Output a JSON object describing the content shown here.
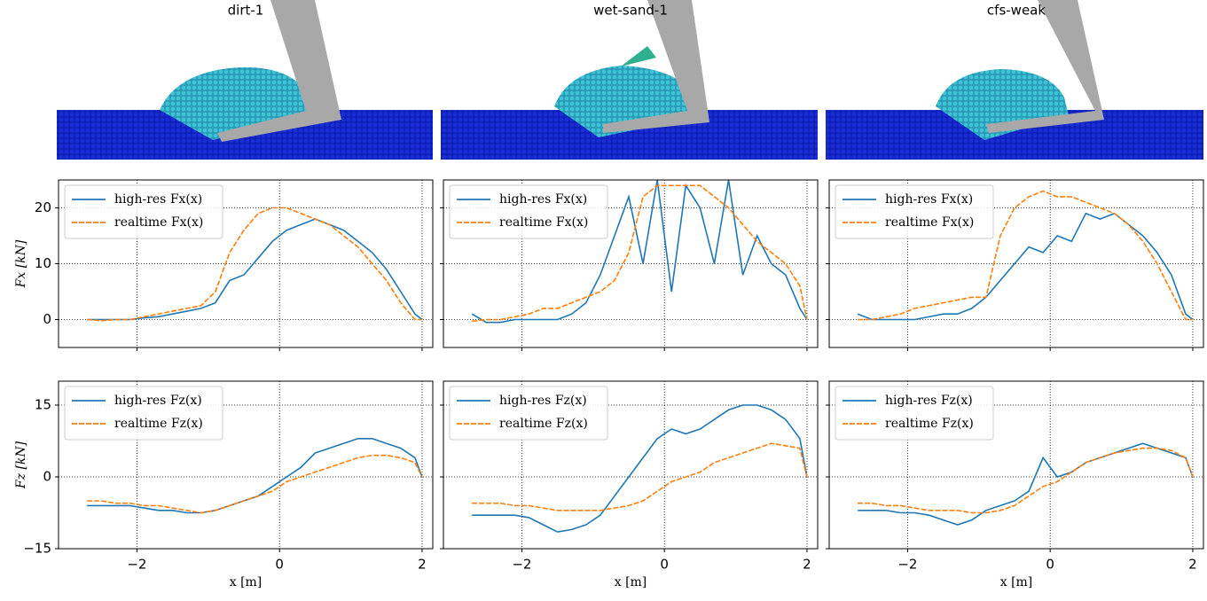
{
  "chart_data": [
    {
      "type": "line",
      "title": "dirt-1",
      "ylabel": "Fx [kN]",
      "xlim": [
        -3.1,
        2.15
      ],
      "ylim": [
        -5,
        25
      ],
      "xticks": [
        -2,
        0,
        2
      ],
      "yticks": [
        0,
        10,
        20
      ],
      "grid": true,
      "legend": "upper left",
      "x": [
        -2.7,
        -2.5,
        -2.3,
        -2.1,
        -1.9,
        -1.7,
        -1.5,
        -1.3,
        -1.1,
        -0.9,
        -0.7,
        -0.5,
        -0.3,
        -0.1,
        0.1,
        0.3,
        0.5,
        0.7,
        0.9,
        1.1,
        1.3,
        1.5,
        1.7,
        1.9,
        2.0
      ],
      "series": [
        {
          "name": "high-res Fx(x)",
          "color": "#1f77b4",
          "linestyle": "solid",
          "values": [
            0,
            0,
            0,
            0,
            0.3,
            0.5,
            1,
            1.5,
            2,
            3,
            7,
            8,
            11,
            14,
            16,
            17,
            18,
            17,
            16,
            14,
            12,
            9,
            5,
            1,
            0
          ]
        },
        {
          "name": "realtime Fx(x)",
          "color": "#ff7f0e",
          "linestyle": "dashed",
          "values": [
            0,
            -0.2,
            0,
            0,
            0.5,
            1,
            1.5,
            2,
            2.5,
            5,
            12,
            16,
            19,
            20,
            20,
            19,
            18,
            17,
            15,
            13,
            10,
            7,
            3,
            0,
            0
          ]
        }
      ]
    },
    {
      "type": "line",
      "title": "wet-sand-1",
      "xlim": [
        -3.1,
        2.15
      ],
      "ylim": [
        -5,
        25
      ],
      "xticks": [
        -2,
        0,
        2
      ],
      "yticks": [
        0,
        10,
        20
      ],
      "grid": true,
      "legend": "upper left",
      "x": [
        -2.7,
        -2.5,
        -2.3,
        -2.1,
        -1.9,
        -1.7,
        -1.5,
        -1.3,
        -1.1,
        -0.9,
        -0.7,
        -0.5,
        -0.3,
        -0.1,
        0.1,
        0.3,
        0.5,
        0.7,
        0.9,
        1.1,
        1.3,
        1.5,
        1.7,
        1.9,
        2.0
      ],
      "series": [
        {
          "name": "high-res Fx(x)",
          "color": "#1f77b4",
          "linestyle": "solid",
          "values": [
            1,
            -0.5,
            -0.5,
            0,
            0,
            0,
            0,
            1,
            3,
            8,
            15,
            22,
            10,
            25,
            5,
            24,
            20,
            10,
            25,
            8,
            15,
            10,
            8,
            2,
            0
          ]
        },
        {
          "name": "realtime Fx(x)",
          "color": "#ff7f0e",
          "linestyle": "dashed",
          "values": [
            -0.3,
            0,
            0,
            0.5,
            1,
            2,
            2,
            3,
            4,
            5,
            7,
            12,
            22,
            24,
            24,
            24,
            24,
            22,
            20,
            17,
            14,
            12,
            10,
            6,
            0
          ]
        }
      ]
    },
    {
      "type": "line",
      "title": "cfs-weak",
      "xlim": [
        -3.1,
        2.15
      ],
      "ylim": [
        -5,
        25
      ],
      "xticks": [
        -2,
        0,
        2
      ],
      "yticks": [
        0,
        10,
        20
      ],
      "grid": true,
      "legend": "upper left",
      "x": [
        -2.7,
        -2.5,
        -2.3,
        -2.1,
        -1.9,
        -1.7,
        -1.5,
        -1.3,
        -1.1,
        -0.9,
        -0.7,
        -0.5,
        -0.3,
        -0.1,
        0.1,
        0.3,
        0.5,
        0.7,
        0.9,
        1.1,
        1.3,
        1.5,
        1.7,
        1.9,
        2.0
      ],
      "series": [
        {
          "name": "high-res Fx(x)",
          "color": "#1f77b4",
          "linestyle": "solid",
          "values": [
            1,
            0,
            0,
            0,
            0,
            0.5,
            1,
            1,
            2,
            4,
            7,
            10,
            13,
            12,
            15,
            14,
            19,
            18,
            19,
            17,
            15,
            12,
            8,
            1,
            0
          ]
        },
        {
          "name": "realtime Fx(x)",
          "color": "#ff7f0e",
          "linestyle": "dashed",
          "values": [
            0,
            0,
            0.5,
            1,
            2,
            2.5,
            3,
            3.5,
            4,
            4,
            15,
            20,
            22,
            23,
            22,
            22,
            21,
            20,
            19,
            17,
            14,
            10,
            5,
            0,
            0
          ]
        }
      ]
    },
    {
      "type": "line",
      "ylabel": "Fz [kN]",
      "xlabel": "x [m]",
      "xlim": [
        -3.1,
        2.15
      ],
      "ylim": [
        -15,
        20
      ],
      "xticks": [
        {
          "value": -2,
          "label": "−2"
        },
        0,
        2
      ],
      "yticks": [
        {
          "value": -15,
          "label": "−15"
        },
        0,
        15
      ],
      "grid": true,
      "legend": "upper left",
      "x": [
        -2.7,
        -2.5,
        -2.3,
        -2.1,
        -1.9,
        -1.7,
        -1.5,
        -1.3,
        -1.1,
        -0.9,
        -0.7,
        -0.5,
        -0.3,
        -0.1,
        0.1,
        0.3,
        0.5,
        0.7,
        0.9,
        1.1,
        1.3,
        1.5,
        1.7,
        1.9,
        2.0
      ],
      "series": [
        {
          "name": "high-res Fz(x)",
          "color": "#1f77b4",
          "linestyle": "solid",
          "values": [
            -6,
            -6,
            -6,
            -6,
            -6.5,
            -7,
            -7,
            -7.5,
            -7.5,
            -7,
            -6,
            -5,
            -4,
            -2,
            0,
            2,
            5,
            6,
            7,
            8,
            8,
            7,
            6,
            4,
            0
          ]
        },
        {
          "name": "realtime Fz(x)",
          "color": "#ff7f0e",
          "linestyle": "dashed",
          "values": [
            -5,
            -5,
            -5.5,
            -5.5,
            -6,
            -6,
            -6.5,
            -7,
            -7.5,
            -7,
            -6,
            -5,
            -4,
            -3,
            -1,
            0,
            1,
            2,
            3,
            4,
            4.5,
            4.5,
            4,
            3,
            0
          ]
        }
      ]
    },
    {
      "type": "line",
      "xlabel": "x [m]",
      "xlim": [
        -3.1,
        2.15
      ],
      "ylim": [
        -15,
        20
      ],
      "xticks": [
        {
          "value": -2,
          "label": "−2"
        },
        0,
        2
      ],
      "yticks": [
        -15,
        0,
        15
      ],
      "grid": true,
      "legend": "upper left",
      "x": [
        -2.7,
        -2.5,
        -2.3,
        -2.1,
        -1.9,
        -1.7,
        -1.5,
        -1.3,
        -1.1,
        -0.9,
        -0.7,
        -0.5,
        -0.3,
        -0.1,
        0.1,
        0.3,
        0.5,
        0.7,
        0.9,
        1.1,
        1.3,
        1.5,
        1.7,
        1.9,
        2.0
      ],
      "series": [
        {
          "name": "high-res Fz(x)",
          "color": "#1f77b4",
          "linestyle": "solid",
          "values": [
            -8,
            -8,
            -8,
            -8,
            -8.5,
            -10,
            -11.5,
            -11,
            -10,
            -8,
            -4,
            0,
            4,
            8,
            10,
            9,
            10,
            12,
            14,
            15,
            15,
            14,
            12,
            8,
            0
          ]
        },
        {
          "name": "realtime Fz(x)",
          "color": "#ff7f0e",
          "linestyle": "dashed",
          "values": [
            -5.5,
            -5.5,
            -5.5,
            -6,
            -6,
            -6.5,
            -7,
            -7,
            -7,
            -7,
            -6.5,
            -6,
            -5,
            -3,
            -1,
            0,
            1,
            3,
            4,
            5,
            6,
            7,
            6.5,
            6,
            0
          ]
        }
      ]
    },
    {
      "type": "line",
      "xlabel": "x [m]",
      "xlim": [
        -3.1,
        2.15
      ],
      "ylim": [
        -15,
        20
      ],
      "xticks": [
        {
          "value": -2,
          "label": "−2"
        },
        0,
        2
      ],
      "yticks": [
        -15,
        0,
        15
      ],
      "grid": true,
      "legend": "upper left",
      "x": [
        -2.7,
        -2.5,
        -2.3,
        -2.1,
        -1.9,
        -1.7,
        -1.5,
        -1.3,
        -1.1,
        -0.9,
        -0.7,
        -0.5,
        -0.3,
        -0.1,
        0.1,
        0.3,
        0.5,
        0.7,
        0.9,
        1.1,
        1.3,
        1.5,
        1.7,
        1.9,
        2.0
      ],
      "series": [
        {
          "name": "high-res Fz(x)",
          "color": "#1f77b4",
          "linestyle": "solid",
          "values": [
            -7,
            -7,
            -7,
            -7.5,
            -7.5,
            -8,
            -9,
            -10,
            -9,
            -7,
            -6,
            -5,
            -3,
            4,
            0,
            1,
            3,
            4,
            5,
            6,
            7,
            6,
            5,
            4,
            0
          ]
        },
        {
          "name": "realtime Fz(x)",
          "color": "#ff7f0e",
          "linestyle": "dashed",
          "values": [
            -5.5,
            -5.5,
            -6,
            -6,
            -6.5,
            -7,
            -7,
            -7,
            -7.5,
            -7.5,
            -7,
            -6,
            -4,
            -2,
            -1,
            1,
            3,
            4,
            5,
            5.5,
            6,
            6,
            5.5,
            4,
            0
          ]
        }
      ]
    }
  ]
}
